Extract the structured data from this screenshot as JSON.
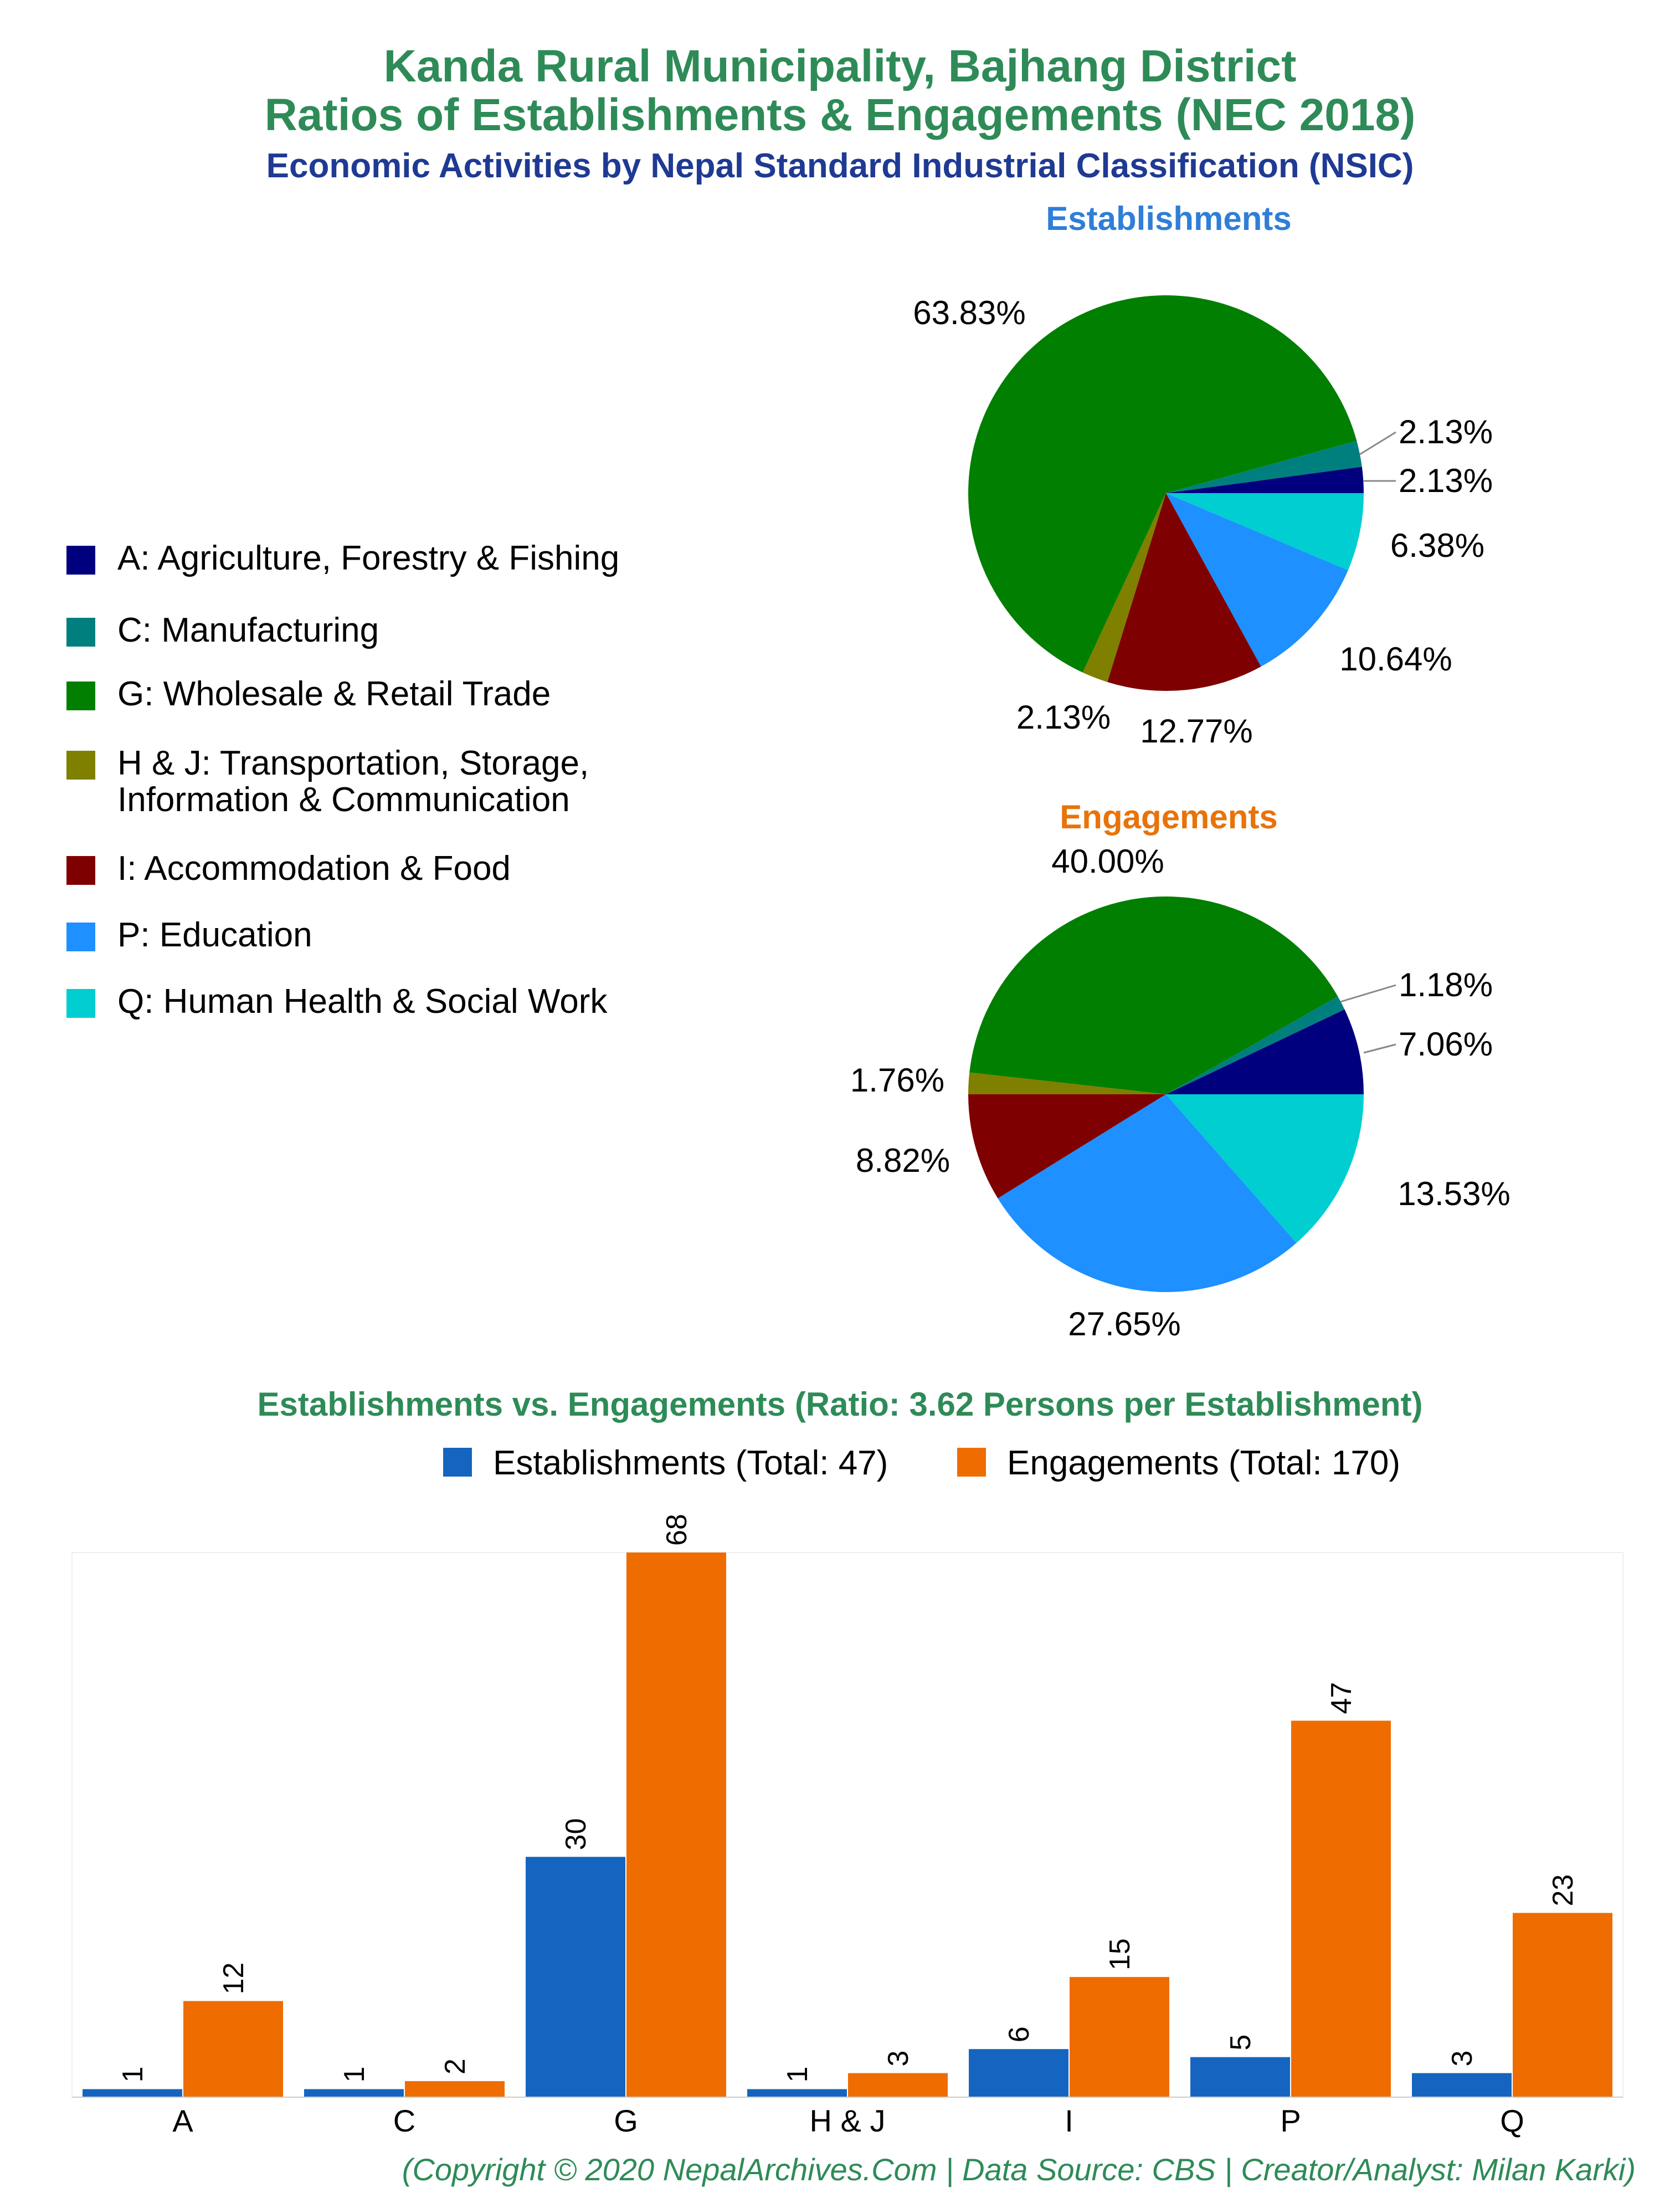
{
  "title_line1": "Kanda Rural Municipality, Bajhang District",
  "title_line2": "Ratios of Establishments & Engagements (NEC 2018)",
  "subtitle": "Economic Activities by Nepal Standard Industrial Classification (NSIC)",
  "colors": {
    "A": "#00007f",
    "C": "#007f7f",
    "G": "#007f00",
    "HJ": "#7f7f00",
    "I": "#7f0000",
    "P": "#1e90ff",
    "Q": "#00ced1",
    "bar_est": "#1565c0",
    "bar_eng": "#ef6c00"
  },
  "legend": [
    {
      "key": "A",
      "label": "A: Agriculture, Forestry & Fishing"
    },
    {
      "key": "C",
      "label": "C: Manufacturing"
    },
    {
      "key": "G",
      "label": "G: Wholesale & Retail Trade"
    },
    {
      "key": "HJ",
      "label": "H & J: Transportation, Storage,",
      "label2": "Information & Communication"
    },
    {
      "key": "I",
      "label": "I: Accommodation & Food"
    },
    {
      "key": "P",
      "label": "P: Education"
    },
    {
      "key": "Q",
      "label": "Q: Human Health & Social Work"
    }
  ],
  "bar_legend": {
    "establishments": "Establishments (Total: 47)",
    "engagements": "Engagements (Total: 170)"
  },
  "footer": "(Copyright © 2020 NepalArchives.Com | Data Source: CBS | Creator/Analyst: Milan Karki)",
  "chart_data": [
    {
      "type": "pie",
      "title": "Establishments",
      "slices": [
        {
          "key": "A",
          "value": 2.13,
          "label": "2.13%"
        },
        {
          "key": "C",
          "value": 2.13,
          "label": "2.13%"
        },
        {
          "key": "G",
          "value": 63.83,
          "label": "63.83%"
        },
        {
          "key": "HJ",
          "value": 2.13,
          "label": "2.13%"
        },
        {
          "key": "I",
          "value": 12.77,
          "label": "12.77%"
        },
        {
          "key": "P",
          "value": 10.64,
          "label": "10.64%"
        },
        {
          "key": "Q",
          "value": 6.38,
          "label": "6.38%"
        }
      ]
    },
    {
      "type": "pie",
      "title": "Engagements",
      "slices": [
        {
          "key": "A",
          "value": 7.06,
          "label": "7.06%"
        },
        {
          "key": "C",
          "value": 1.18,
          "label": "1.18%"
        },
        {
          "key": "G",
          "value": 40.0,
          "label": "40.00%"
        },
        {
          "key": "HJ",
          "value": 1.76,
          "label": "1.76%"
        },
        {
          "key": "I",
          "value": 8.82,
          "label": "8.82%"
        },
        {
          "key": "P",
          "value": 27.65,
          "label": "27.65%"
        },
        {
          "key": "Q",
          "value": 13.53,
          "label": "13.53%"
        }
      ]
    },
    {
      "type": "bar",
      "title": "Establishments vs. Engagements (Ratio: 3.62 Persons per Establishment)",
      "categories": [
        "A",
        "C",
        "G",
        "H & J",
        "I",
        "P",
        "Q"
      ],
      "series": [
        {
          "name": "Establishments",
          "values": [
            1,
            1,
            30,
            1,
            6,
            5,
            3
          ]
        },
        {
          "name": "Engagements",
          "values": [
            12,
            2,
            68,
            3,
            15,
            47,
            23
          ]
        }
      ],
      "ylim": [
        0,
        68
      ],
      "grid": false
    }
  ]
}
